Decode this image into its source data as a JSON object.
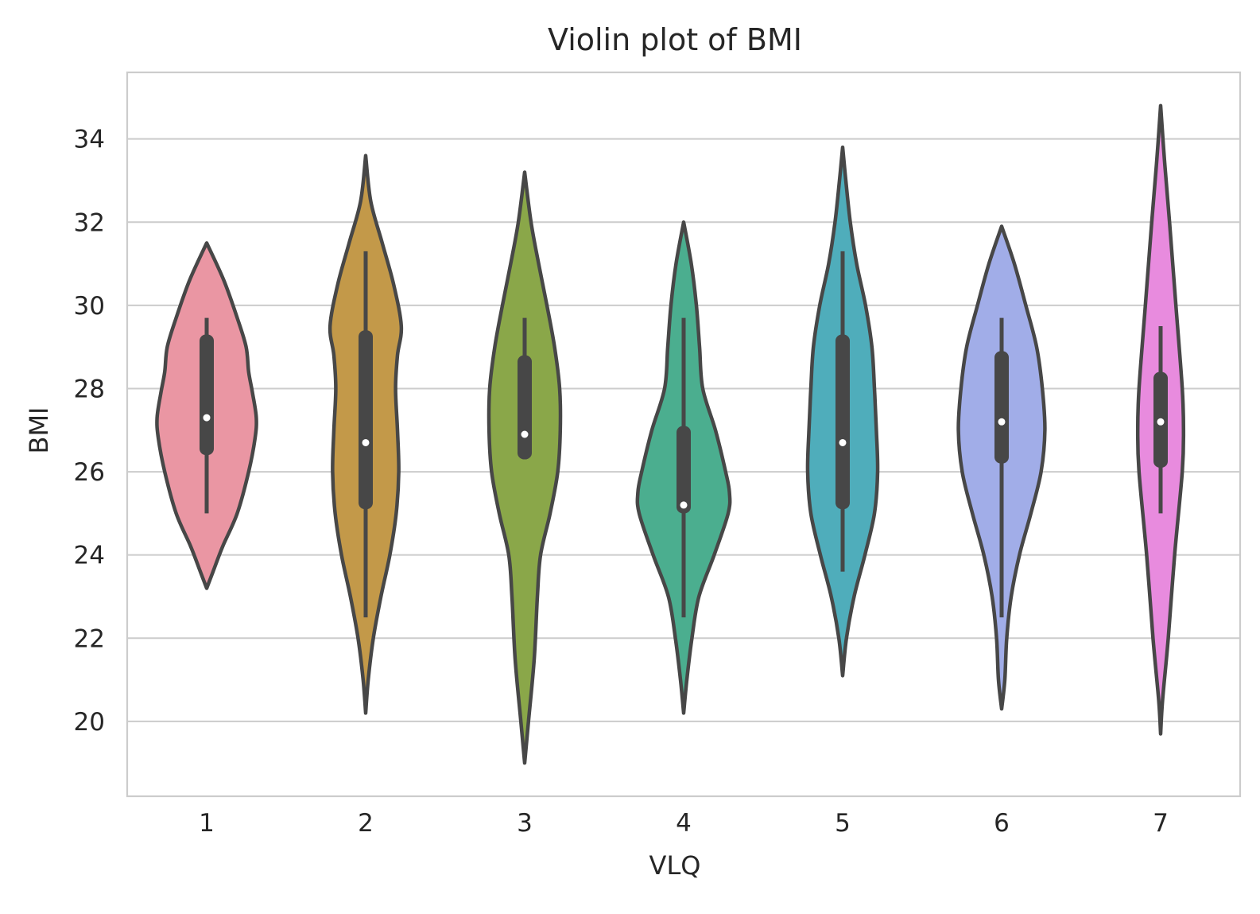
{
  "chart_data": {
    "type": "violin",
    "title": "Violin plot of BMI",
    "xlabel": "VLQ",
    "ylabel": "BMI",
    "ylim": [
      18.2,
      35.6
    ],
    "yticks": [
      20,
      22,
      24,
      26,
      28,
      30,
      32,
      34
    ],
    "grid": "horizontal",
    "categories": [
      "1",
      "2",
      "3",
      "4",
      "5",
      "6",
      "7"
    ],
    "colors": [
      "#EA96A3",
      "#C39949",
      "#8AA749",
      "#4BAE8F",
      "#4FADBB",
      "#A1ADE8",
      "#E88BDE"
    ],
    "edge_color": "#474747",
    "boxes": [
      {
        "min": 25.0,
        "q1": 26.4,
        "median": 27.3,
        "q3": 29.3,
        "max": 29.7
      },
      {
        "min": 22.5,
        "q1": 25.1,
        "median": 26.7,
        "q3": 29.4,
        "max": 31.3
      },
      {
        "min": 26.3,
        "q1": 26.3,
        "median": 26.9,
        "q3": 28.8,
        "max": 29.7
      },
      {
        "min": 22.5,
        "q1": 25.0,
        "median": 25.2,
        "q3": 27.1,
        "max": 29.7
      },
      {
        "min": 23.6,
        "q1": 25.1,
        "median": 26.7,
        "q3": 29.3,
        "max": 31.3
      },
      {
        "min": 22.5,
        "q1": 26.2,
        "median": 27.2,
        "q3": 28.9,
        "max": 29.7
      },
      {
        "min": 25.0,
        "q1": 26.1,
        "median": 27.2,
        "q3": 28.4,
        "max": 29.5
      }
    ],
    "violins": [
      {
        "ymin": 23.2,
        "ymax": 31.5,
        "density": [
          [
            23.2,
            0.0
          ],
          [
            23.6,
            0.1
          ],
          [
            24.2,
            0.25
          ],
          [
            25.0,
            0.48
          ],
          [
            26.0,
            0.66
          ],
          [
            26.8,
            0.76
          ],
          [
            27.3,
            0.78
          ],
          [
            27.9,
            0.72
          ],
          [
            28.4,
            0.66
          ],
          [
            29.0,
            0.62
          ],
          [
            29.7,
            0.48
          ],
          [
            30.6,
            0.27
          ],
          [
            31.5,
            0.0
          ]
        ]
      },
      {
        "ymin": 20.2,
        "ymax": 33.6,
        "density": [
          [
            20.2,
            0.0
          ],
          [
            21.0,
            0.04
          ],
          [
            22.0,
            0.12
          ],
          [
            23.0,
            0.24
          ],
          [
            24.0,
            0.38
          ],
          [
            25.0,
            0.48
          ],
          [
            26.0,
            0.52
          ],
          [
            27.0,
            0.5
          ],
          [
            28.0,
            0.47
          ],
          [
            28.8,
            0.5
          ],
          [
            29.5,
            0.56
          ],
          [
            30.5,
            0.44
          ],
          [
            31.5,
            0.26
          ],
          [
            32.5,
            0.08
          ],
          [
            33.6,
            0.0
          ]
        ]
      },
      {
        "ymin": 19.0,
        "ymax": 33.2,
        "density": [
          [
            19.0,
            0.0
          ],
          [
            20.0,
            0.06
          ],
          [
            21.5,
            0.15
          ],
          [
            23.0,
            0.2
          ],
          [
            24.0,
            0.25
          ],
          [
            25.0,
            0.4
          ],
          [
            26.0,
            0.52
          ],
          [
            27.0,
            0.56
          ],
          [
            28.0,
            0.55
          ],
          [
            29.0,
            0.47
          ],
          [
            30.0,
            0.35
          ],
          [
            31.0,
            0.22
          ],
          [
            32.0,
            0.1
          ],
          [
            33.2,
            0.0
          ]
        ]
      },
      {
        "ymin": 20.2,
        "ymax": 32.0,
        "density": [
          [
            20.2,
            0.0
          ],
          [
            21.0,
            0.05
          ],
          [
            22.0,
            0.13
          ],
          [
            23.0,
            0.24
          ],
          [
            24.0,
            0.48
          ],
          [
            25.0,
            0.7
          ],
          [
            25.5,
            0.72
          ],
          [
            26.0,
            0.66
          ],
          [
            27.0,
            0.5
          ],
          [
            28.0,
            0.3
          ],
          [
            29.0,
            0.25
          ],
          [
            30.0,
            0.2
          ],
          [
            31.0,
            0.12
          ],
          [
            32.0,
            0.0
          ]
        ]
      },
      {
        "ymin": 21.1,
        "ymax": 33.8,
        "density": [
          [
            21.1,
            0.0
          ],
          [
            22.0,
            0.06
          ],
          [
            23.0,
            0.18
          ],
          [
            24.0,
            0.35
          ],
          [
            25.0,
            0.5
          ],
          [
            26.0,
            0.55
          ],
          [
            27.0,
            0.53
          ],
          [
            28.0,
            0.5
          ],
          [
            29.0,
            0.46
          ],
          [
            30.0,
            0.36
          ],
          [
            31.0,
            0.22
          ],
          [
            32.0,
            0.12
          ],
          [
            33.0,
            0.05
          ],
          [
            33.8,
            0.0
          ]
        ]
      },
      {
        "ymin": 20.3,
        "ymax": 31.9,
        "density": [
          [
            20.3,
            0.0
          ],
          [
            21.0,
            0.05
          ],
          [
            22.0,
            0.08
          ],
          [
            23.0,
            0.15
          ],
          [
            24.0,
            0.28
          ],
          [
            25.0,
            0.46
          ],
          [
            26.0,
            0.62
          ],
          [
            27.0,
            0.68
          ],
          [
            28.0,
            0.64
          ],
          [
            29.0,
            0.55
          ],
          [
            30.0,
            0.38
          ],
          [
            31.0,
            0.2
          ],
          [
            31.9,
            0.0
          ]
        ]
      },
      {
        "ymin": 19.7,
        "ymax": 34.8,
        "density": [
          [
            19.7,
            0.0
          ],
          [
            20.5,
            0.03
          ],
          [
            22.0,
            0.12
          ],
          [
            24.0,
            0.22
          ],
          [
            26.0,
            0.34
          ],
          [
            27.0,
            0.36
          ],
          [
            28.0,
            0.34
          ],
          [
            30.0,
            0.24
          ],
          [
            32.0,
            0.14
          ],
          [
            33.5,
            0.06
          ],
          [
            34.8,
            0.0
          ]
        ]
      }
    ]
  }
}
